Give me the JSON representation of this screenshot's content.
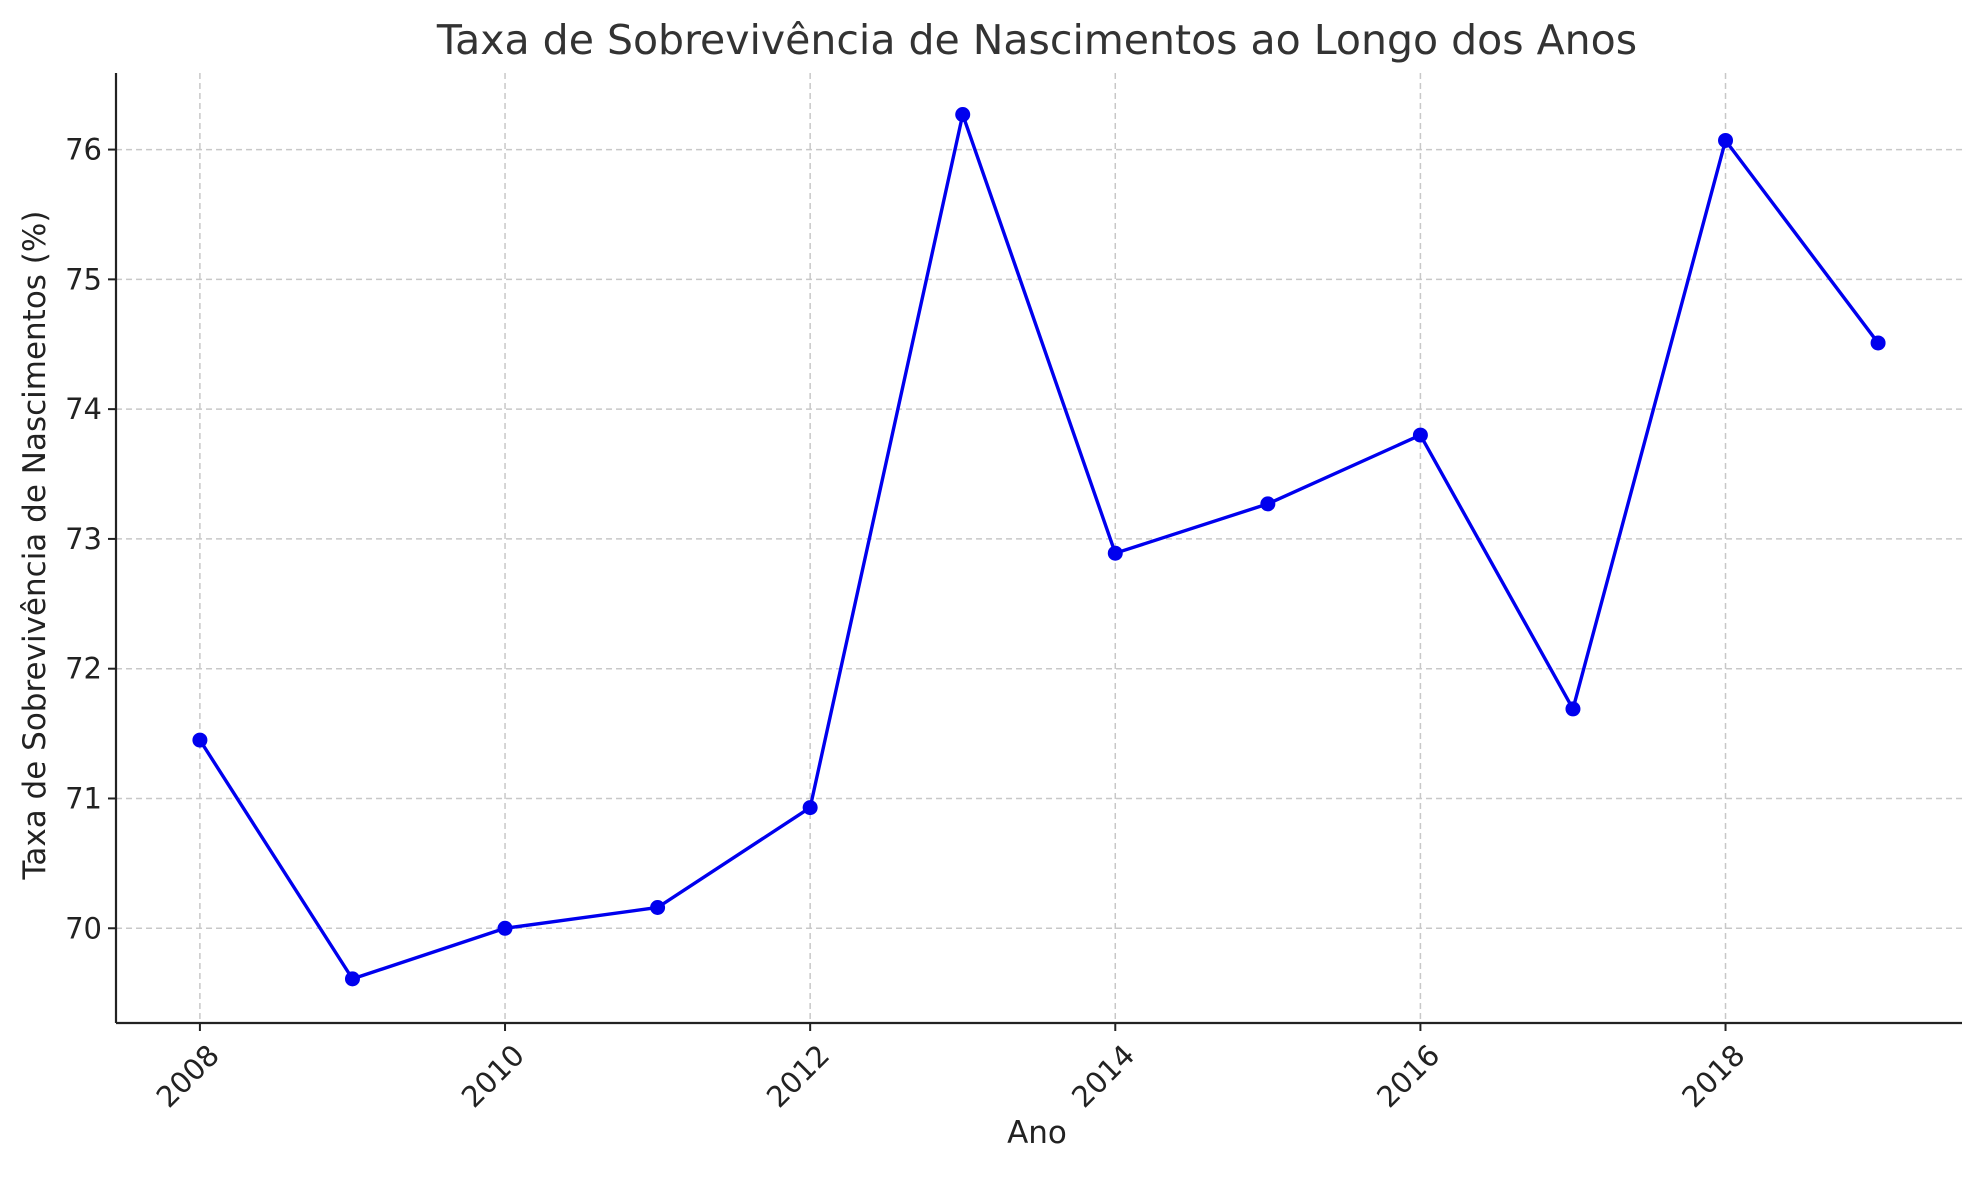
{
  "chart_data": {
    "type": "line",
    "title": "Taxa de Sobrevivência de Nascimentos ao Longo dos Anos",
    "xlabel": "Ano",
    "ylabel": "Taxa de Sobrevivência de Nascimentos (%)",
    "x": [
      2008,
      2009,
      2010,
      2011,
      2012,
      2013,
      2014,
      2015,
      2016,
      2017,
      2018,
      2019
    ],
    "series": [
      {
        "values": [
          71.45,
          69.61,
          70.0,
          70.16,
          70.93,
          76.27,
          72.89,
          73.27,
          73.8,
          71.69,
          76.07,
          74.51
        ],
        "color": "#0000ee",
        "marker": "circle"
      }
    ],
    "xlim": [
      2007.45,
      2019.55
    ],
    "ylim": [
      69.27,
      76.59
    ],
    "xticks": [
      2008,
      2010,
      2012,
      2014,
      2016,
      2018
    ],
    "yticks": [
      70,
      71,
      72,
      73,
      74,
      75,
      76
    ],
    "grid": true,
    "legend": "none"
  }
}
